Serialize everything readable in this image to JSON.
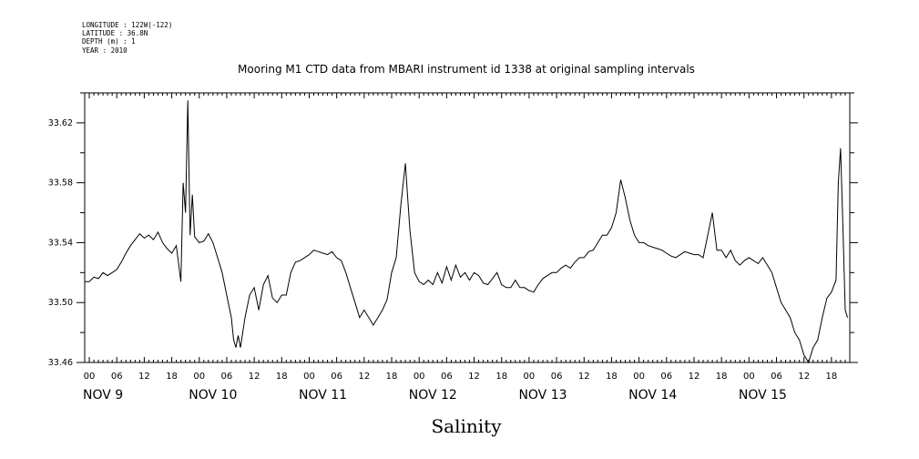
{
  "header": {
    "meta_lines": [
      "LONGITUDE : 122W(-122)",
      "LATITUDE : 36.8N",
      "DEPTH (m) : 1",
      "YEAR : 2010"
    ]
  },
  "chart_data": {
    "type": "line",
    "title": "Mooring M1 CTD data from MBARI instrument id 1338 at original sampling intervals",
    "xlabel": "Salinity",
    "ylabel": "",
    "ylim": [
      33.46,
      33.64
    ],
    "yticks": [
      33.46,
      33.5,
      33.54,
      33.58,
      33.62
    ],
    "ytick_labels": [
      "33.46",
      "33.50",
      "33.54",
      "33.58",
      "33.62"
    ],
    "xlim_hours": [
      -1,
      166
    ],
    "hour_ticks": [
      "00",
      "06",
      "12",
      "18"
    ],
    "day_labels": [
      "NOV  9",
      "NOV 10",
      "NOV 11",
      "NOV 12",
      "NOV 13",
      "NOV 14",
      "NOV 15"
    ],
    "grid": false,
    "series": [
      {
        "points": [
          [
            -1,
            33.514
          ],
          [
            0,
            33.514
          ],
          [
            1,
            33.517
          ],
          [
            2,
            33.516
          ],
          [
            3,
            33.52
          ],
          [
            4,
            33.518
          ],
          [
            5,
            33.52
          ],
          [
            6,
            33.522
          ],
          [
            7,
            33.527
          ],
          [
            8,
            33.533
          ],
          [
            9,
            33.538
          ],
          [
            10,
            33.542
          ],
          [
            11,
            33.546
          ],
          [
            12,
            33.543
          ],
          [
            13,
            33.545
          ],
          [
            14,
            33.542
          ],
          [
            15,
            33.547
          ],
          [
            16,
            33.54
          ],
          [
            17,
            33.536
          ],
          [
            18,
            33.533
          ],
          [
            19,
            33.538
          ],
          [
            20,
            33.514
          ],
          [
            20.5,
            33.58
          ],
          [
            21,
            33.56
          ],
          [
            21.5,
            33.635
          ],
          [
            22,
            33.545
          ],
          [
            22.5,
            33.572
          ],
          [
            23,
            33.544
          ],
          [
            24,
            33.54
          ],
          [
            25,
            33.541
          ],
          [
            26,
            33.546
          ],
          [
            27,
            33.54
          ],
          [
            28,
            33.53
          ],
          [
            29,
            33.52
          ],
          [
            30,
            33.505
          ],
          [
            31,
            33.49
          ],
          [
            31.5,
            33.475
          ],
          [
            32,
            33.47
          ],
          [
            32.5,
            33.478
          ],
          [
            33,
            33.47
          ],
          [
            34,
            33.49
          ],
          [
            35,
            33.505
          ],
          [
            36,
            33.51
          ],
          [
            37,
            33.495
          ],
          [
            38,
            33.512
          ],
          [
            39,
            33.518
          ],
          [
            40,
            33.503
          ],
          [
            41,
            33.5
          ],
          [
            42,
            33.505
          ],
          [
            43,
            33.505
          ],
          [
            44,
            33.52
          ],
          [
            45,
            33.527
          ],
          [
            46,
            33.528
          ],
          [
            47,
            33.53
          ],
          [
            48,
            33.532
          ],
          [
            49,
            33.535
          ],
          [
            50,
            33.534
          ],
          [
            51,
            33.533
          ],
          [
            52,
            33.532
          ],
          [
            53,
            33.534
          ],
          [
            54,
            33.53
          ],
          [
            55,
            33.528
          ],
          [
            56,
            33.52
          ],
          [
            57,
            33.51
          ],
          [
            58,
            33.5
          ],
          [
            59,
            33.49
          ],
          [
            60,
            33.495
          ],
          [
            61,
            33.49
          ],
          [
            62,
            33.485
          ],
          [
            63,
            33.49
          ],
          [
            64,
            33.495
          ],
          [
            65,
            33.502
          ],
          [
            66,
            33.52
          ],
          [
            67,
            33.53
          ],
          [
            68,
            33.565
          ],
          [
            69,
            33.593
          ],
          [
            69.5,
            33.57
          ],
          [
            70,
            33.548
          ],
          [
            71,
            33.52
          ],
          [
            72,
            33.514
          ],
          [
            73,
            33.512
          ],
          [
            74,
            33.515
          ],
          [
            75,
            33.512
          ],
          [
            76,
            33.52
          ],
          [
            77,
            33.513
          ],
          [
            78,
            33.524
          ],
          [
            79,
            33.515
          ],
          [
            80,
            33.525
          ],
          [
            81,
            33.517
          ],
          [
            82,
            33.52
          ],
          [
            83,
            33.515
          ],
          [
            84,
            33.52
          ],
          [
            85,
            33.518
          ],
          [
            86,
            33.513
          ],
          [
            87,
            33.512
          ],
          [
            88,
            33.516
          ],
          [
            89,
            33.52
          ],
          [
            90,
            33.512
          ],
          [
            91,
            33.51
          ],
          [
            92,
            33.51
          ],
          [
            93,
            33.515
          ],
          [
            94,
            33.51
          ],
          [
            95,
            33.51
          ],
          [
            96,
            33.508
          ],
          [
            97,
            33.507
          ],
          [
            98,
            33.512
          ],
          [
            99,
            33.516
          ],
          [
            100,
            33.518
          ],
          [
            101,
            33.52
          ],
          [
            102,
            33.52
          ],
          [
            103,
            33.523
          ],
          [
            104,
            33.525
          ],
          [
            105,
            33.523
          ],
          [
            106,
            33.527
          ],
          [
            107,
            33.53
          ],
          [
            108,
            33.53
          ],
          [
            109,
            33.534
          ],
          [
            110,
            33.535
          ],
          [
            111,
            33.54
          ],
          [
            112,
            33.545
          ],
          [
            113,
            33.545
          ],
          [
            114,
            33.55
          ],
          [
            115,
            33.56
          ],
          [
            116,
            33.582
          ],
          [
            117,
            33.57
          ],
          [
            118,
            33.555
          ],
          [
            119,
            33.545
          ],
          [
            120,
            33.54
          ],
          [
            121,
            33.54
          ],
          [
            122,
            33.538
          ],
          [
            123,
            33.537
          ],
          [
            124,
            33.536
          ],
          [
            125,
            33.535
          ],
          [
            126,
            33.533
          ],
          [
            127,
            33.531
          ],
          [
            128,
            33.53
          ],
          [
            129,
            33.532
          ],
          [
            130,
            33.534
          ],
          [
            131,
            33.533
          ],
          [
            132,
            33.532
          ],
          [
            133,
            33.532
          ],
          [
            134,
            33.53
          ],
          [
            135,
            33.545
          ],
          [
            136,
            33.56
          ],
          [
            137,
            33.535
          ],
          [
            138,
            33.535
          ],
          [
            139,
            33.53
          ],
          [
            140,
            33.535
          ],
          [
            141,
            33.528
          ],
          [
            142,
            33.525
          ],
          [
            143,
            33.528
          ],
          [
            144,
            33.53
          ],
          [
            145,
            33.528
          ],
          [
            146,
            33.526
          ],
          [
            147,
            33.53
          ],
          [
            148,
            33.525
          ],
          [
            149,
            33.52
          ],
          [
            150,
            33.51
          ],
          [
            151,
            33.5
          ],
          [
            152,
            33.495
          ],
          [
            153,
            33.49
          ],
          [
            154,
            33.48
          ],
          [
            155,
            33.475
          ],
          [
            156,
            33.465
          ],
          [
            157,
            33.46
          ],
          [
            158,
            33.47
          ],
          [
            159,
            33.475
          ],
          [
            160,
            33.49
          ],
          [
            161,
            33.503
          ],
          [
            162,
            33.507
          ],
          [
            163,
            33.515
          ],
          [
            163.5,
            33.58
          ],
          [
            164,
            33.603
          ],
          [
            164.5,
            33.55
          ],
          [
            165,
            33.495
          ],
          [
            165.5,
            33.49
          ]
        ]
      }
    ]
  }
}
